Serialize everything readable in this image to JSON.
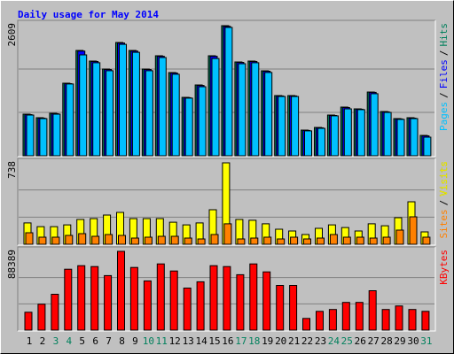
{
  "chart_data": [
    {
      "type": "bar",
      "title": "Daily usage for May 2014",
      "title_color": "#0000ff",
      "legend_separator": "/",
      "ylim": [
        0,
        2609
      ],
      "yticks": [
        2609
      ],
      "series": [
        {
          "name": "Pages",
          "color": "#00c0ff",
          "values": [
            817,
            745,
            835,
            1440,
            2023,
            1865,
            1705,
            2235,
            2075,
            1705,
            1970,
            1635,
            1155,
            1385,
            1950,
            2574,
            1845,
            1865,
            1670,
            1190,
            1190,
            498,
            551,
            800,
            940,
            925,
            1245,
            870,
            730,
            745,
            373
          ]
        },
        {
          "name": "Files",
          "color": "#0000ff",
          "values": [
            826,
            755,
            843,
            1447,
            2100,
            1890,
            1730,
            2262,
            2100,
            1730,
            1995,
            1660,
            1165,
            1410,
            1995,
            2595,
            1872,
            1890,
            1695,
            1200,
            1200,
            508,
            560,
            808,
            968,
            933,
            1270,
            880,
            738,
            755,
            400
          ]
        },
        {
          "name": "Hits",
          "color": "#00805c",
          "values": [
            834,
            763,
            852,
            1455,
            2112,
            1899,
            1740,
            2272,
            2112,
            1740,
            2006,
            1669,
            1172,
            1420,
            2006,
            2609,
            1882,
            1899,
            1704,
            1207,
            1207,
            515,
            568,
            817,
            976,
            941,
            1278,
            888,
            746,
            763,
            408
          ]
        }
      ]
    },
    {
      "type": "bar",
      "legend_separator": "/",
      "ylim": [
        0,
        738
      ],
      "yticks": [
        738
      ],
      "series": [
        {
          "name": "Sites",
          "color": "#ff8000",
          "values": [
            104,
            64,
            64,
            80,
            96,
            72,
            88,
            80,
            56,
            64,
            72,
            72,
            56,
            48,
            88,
            185,
            48,
            56,
            64,
            48,
            64,
            48,
            56,
            88,
            64,
            64,
            56,
            64,
            128,
            249,
            64
          ]
        },
        {
          "name": "Visits",
          "color": "#ffff00",
          "values": [
            193,
            160,
            160,
            176,
            225,
            233,
            265,
            289,
            233,
            233,
            233,
            200,
            176,
            193,
            313,
            738,
            225,
            217,
            185,
            136,
            120,
            88,
            144,
            176,
            152,
            120,
            185,
            168,
            241,
            385,
            112
          ]
        }
      ]
    },
    {
      "type": "bar",
      "ylim": [
        0,
        88389
      ],
      "yticks": [
        88389
      ],
      "series": [
        {
          "name": "KBytes",
          "color": "#ff0000",
          "values": [
            20100,
            29100,
            40200,
            68300,
            72300,
            71300,
            61200,
            88389,
            70300,
            55200,
            74300,
            66300,
            47200,
            54200,
            72300,
            71300,
            62200,
            74300,
            65300,
            50200,
            50200,
            13100,
            21100,
            23100,
            31100,
            31100,
            44200,
            23100,
            27100,
            23100,
            21100
          ]
        }
      ],
      "categories": [
        "1",
        "2",
        "3",
        "4",
        "5",
        "6",
        "7",
        "8",
        "9",
        "10",
        "11",
        "12",
        "13",
        "14",
        "15",
        "16",
        "17",
        "18",
        "19",
        "20",
        "21",
        "22",
        "23",
        "24",
        "25",
        "26",
        "27",
        "28",
        "29",
        "30",
        "31"
      ],
      "category_colors": [
        "#000000",
        "#000000",
        "#00805c",
        "#00805c",
        "#000000",
        "#000000",
        "#000000",
        "#000000",
        "#000000",
        "#00805c",
        "#00805c",
        "#000000",
        "#000000",
        "#000000",
        "#000000",
        "#000000",
        "#00805c",
        "#00805c",
        "#000000",
        "#000000",
        "#000000",
        "#000000",
        "#000000",
        "#00805c",
        "#00805c",
        "#000000",
        "#000000",
        "#000000",
        "#000000",
        "#000000",
        "#00805c"
      ]
    }
  ]
}
